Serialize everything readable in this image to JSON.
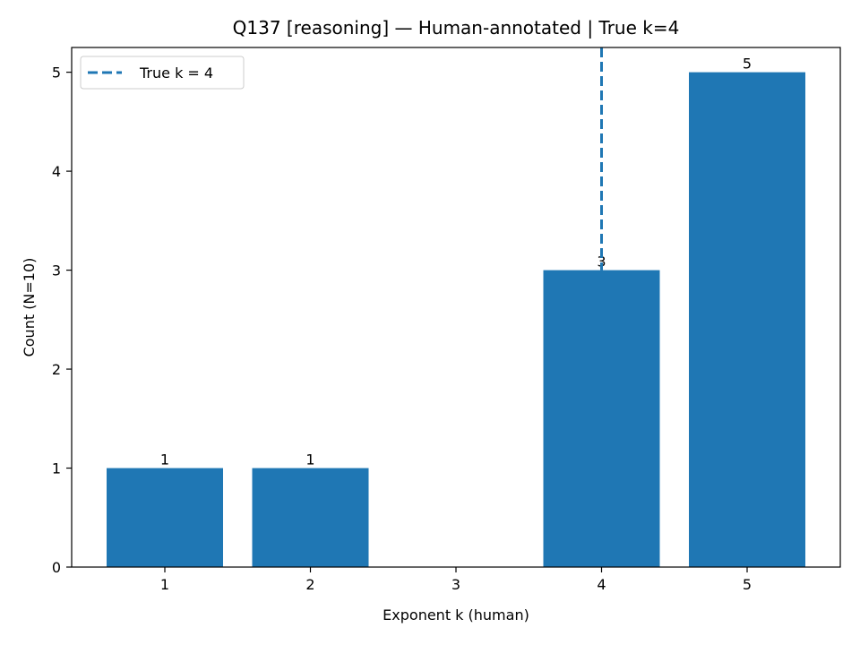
{
  "chart_data": {
    "type": "bar",
    "title": "Q137 [reasoning] — Human-annotated | True k=4",
    "xlabel": "Exponent k (human)",
    "ylabel": "Count (N=10)",
    "categories": [
      "1",
      "2",
      "3",
      "4",
      "5"
    ],
    "x": [
      1,
      2,
      3,
      4,
      5
    ],
    "values": [
      1,
      1,
      0,
      3,
      5
    ],
    "bar_labels": [
      "1",
      "1",
      "",
      "3",
      "5"
    ],
    "xlim": [
      0.36,
      5.64
    ],
    "ylim": [
      0,
      5.25
    ],
    "yticks": [
      0,
      1,
      2,
      3,
      4,
      5
    ],
    "bar_color": "#1f77b4",
    "reference_line": {
      "x": 4,
      "label": "True k = 4",
      "color": "#1f77b4",
      "style": "dashed"
    },
    "legend_position": "top-left",
    "grid": false
  }
}
